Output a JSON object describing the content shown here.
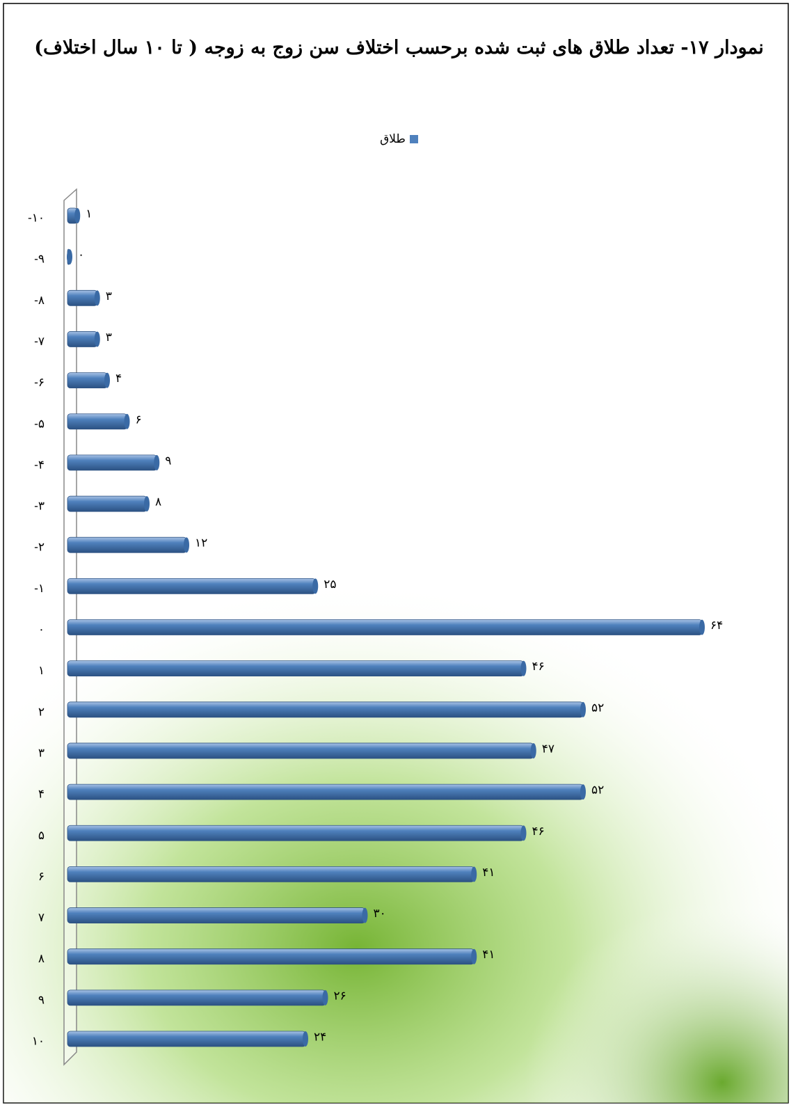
{
  "chart_data": {
    "type": "bar",
    "orientation": "horizontal",
    "title": "نمودار ۱۷- تعداد طلاق های ثبت شده برحسب اختلاف سن زوج به زوجه ( تا ۱۰ سال اختلاف)",
    "categories": [
      "-۱۰",
      "-۹",
      "-۸",
      "-۷",
      "-۶",
      "-۵",
      "-۴",
      "-۳",
      "-۲",
      "-۱",
      "۰",
      "۱",
      "۲",
      "۳",
      "۴",
      "۵",
      "۶",
      "۷",
      "۸",
      "۹",
      "۱۰"
    ],
    "series": [
      {
        "name": "طلاق",
        "color": "#4f81bd",
        "values": [
          1,
          0,
          3,
          3,
          4,
          6,
          9,
          8,
          12,
          25,
          64,
          46,
          52,
          47,
          52,
          46,
          41,
          30,
          41,
          26,
          24
        ],
        "value_labels": [
          "۱",
          "۰",
          "۳",
          "۳",
          "۴",
          "۶",
          "۹",
          "۸",
          "۱۲",
          "۲۵",
          "۶۴",
          "۴۶",
          "۵۲",
          "۴۷",
          "۵۲",
          "۴۶",
          "۴۱",
          "۳۰",
          "۴۱",
          "۲۶",
          "۲۴"
        ]
      }
    ],
    "legend": "top"
  }
}
